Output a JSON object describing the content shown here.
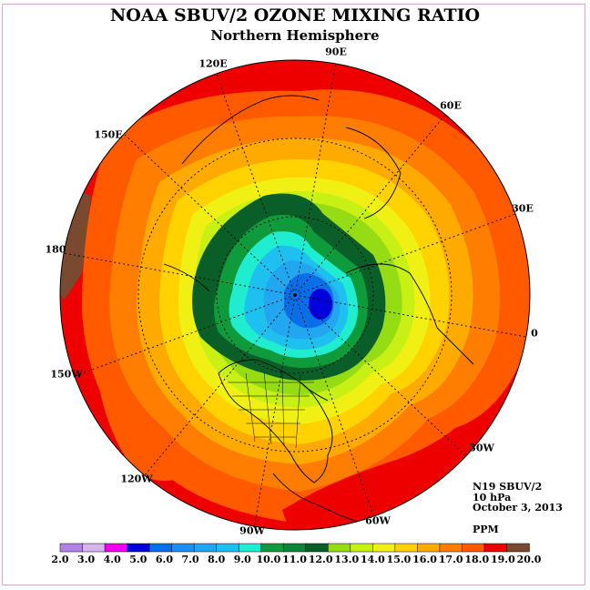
{
  "title": "NOAA SBUV/2 OZONE MIXING RATIO",
  "subtitle": "Northern Hemisphere",
  "info": {
    "satellite": "N19 SBUV/2",
    "level": "10 hPa",
    "date": "October 3, 2013",
    "units": "PPM"
  },
  "longitude_labels": {
    "lon_90e": "90E",
    "lon_60e": "60E",
    "lon_30e": "30E",
    "lon_0": "0",
    "lon_30w": "30W",
    "lon_60w": "60W",
    "lon_90w": "90W",
    "lon_120w": "120W",
    "lon_150w": "150W",
    "lon_180": "180",
    "lon_150e": "150E",
    "lon_120e": "120E"
  },
  "colorbar": {
    "ticks": [
      "2.0",
      "3.0",
      "4.0",
      "5.0",
      "6.0",
      "7.0",
      "8.0",
      "9.0",
      "10.0",
      "11.0",
      "12.0",
      "13.0",
      "14.0",
      "15.0",
      "16.0",
      "17.0",
      "18.0",
      "19.0",
      "20.0"
    ],
    "colors": [
      "#b481e8",
      "#d9b3ee",
      "#ee00ee",
      "#0000dd",
      "#0a6ee8",
      "#1e8cf0",
      "#22a6f0",
      "#1ec0f0",
      "#20ecd0",
      "#0f9b3c",
      "#0e8436",
      "#0a5f28",
      "#96dc14",
      "#c8f014",
      "#f0f014",
      "#ffd200",
      "#ffaa00",
      "#ff7d00",
      "#ff5a00",
      "#ee0000",
      "#7a4a30"
    ]
  },
  "map_colors": {
    "ocean_red": "#ee0000",
    "orange_red": "#ff5a00",
    "orange": "#ff7d00",
    "light_orange": "#ffaa00",
    "gold": "#ffd200",
    "yellow": "#f0f014",
    "yellow_green": "#c8f014",
    "lime": "#96dc14",
    "dark_green": "#0a5f28",
    "green": "#0f9b3c",
    "cyan": "#20ecd0",
    "sky": "#1ec0f0",
    "blue": "#22a6f0",
    "mid_blue": "#0a6ee8",
    "dark_blue": "#0000dd",
    "brown": "#7a4a30"
  }
}
